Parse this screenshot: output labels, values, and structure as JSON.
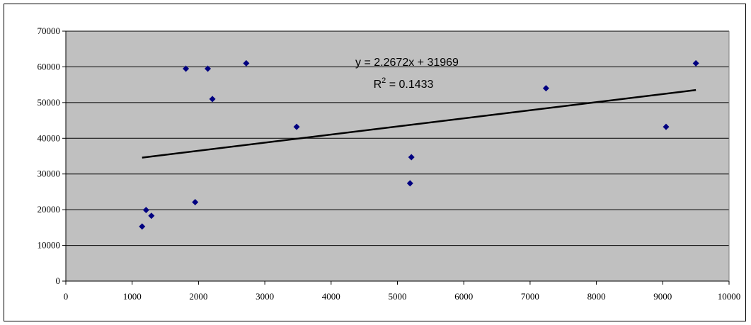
{
  "chart_data": {
    "type": "scatter",
    "title": "",
    "xlabel": "",
    "ylabel": "",
    "xlim": [
      0,
      10000
    ],
    "ylim": [
      0,
      70000
    ],
    "x_ticks": [
      0,
      1000,
      2000,
      3000,
      4000,
      5000,
      6000,
      7000,
      8000,
      9000,
      10000
    ],
    "y_ticks": [
      0,
      10000,
      20000,
      30000,
      40000,
      50000,
      60000,
      70000
    ],
    "grid": "horizontal",
    "legend": "none",
    "series": [
      {
        "marker": "diamond",
        "color": "#000080",
        "points": [
          {
            "x": 1150,
            "y": 15300
          },
          {
            "x": 1210,
            "y": 19900
          },
          {
            "x": 1290,
            "y": 18300
          },
          {
            "x": 1810,
            "y": 59500
          },
          {
            "x": 1950,
            "y": 22100
          },
          {
            "x": 2140,
            "y": 59500
          },
          {
            "x": 2210,
            "y": 51000
          },
          {
            "x": 2720,
            "y": 61000
          },
          {
            "x": 3480,
            "y": 43200
          },
          {
            "x": 5190,
            "y": 27400
          },
          {
            "x": 5210,
            "y": 34700
          },
          {
            "x": 7240,
            "y": 54000
          },
          {
            "x": 9050,
            "y": 43200
          },
          {
            "x": 9500,
            "y": 61000
          }
        ]
      }
    ],
    "trendline": {
      "type": "linear",
      "slope": 2.2672,
      "intercept": 31969,
      "x_range": [
        1150,
        9500
      ],
      "equation_label": "y = 2.2672x + 31969",
      "r2_label_prefix": "R",
      "r2_label_sup": "2",
      "r2_label_value": " = 0.1433"
    },
    "colors": {
      "plot_background": "#c0c0c0",
      "gridline": "#000000",
      "marker": "#000080",
      "trendline": "#000000"
    }
  }
}
